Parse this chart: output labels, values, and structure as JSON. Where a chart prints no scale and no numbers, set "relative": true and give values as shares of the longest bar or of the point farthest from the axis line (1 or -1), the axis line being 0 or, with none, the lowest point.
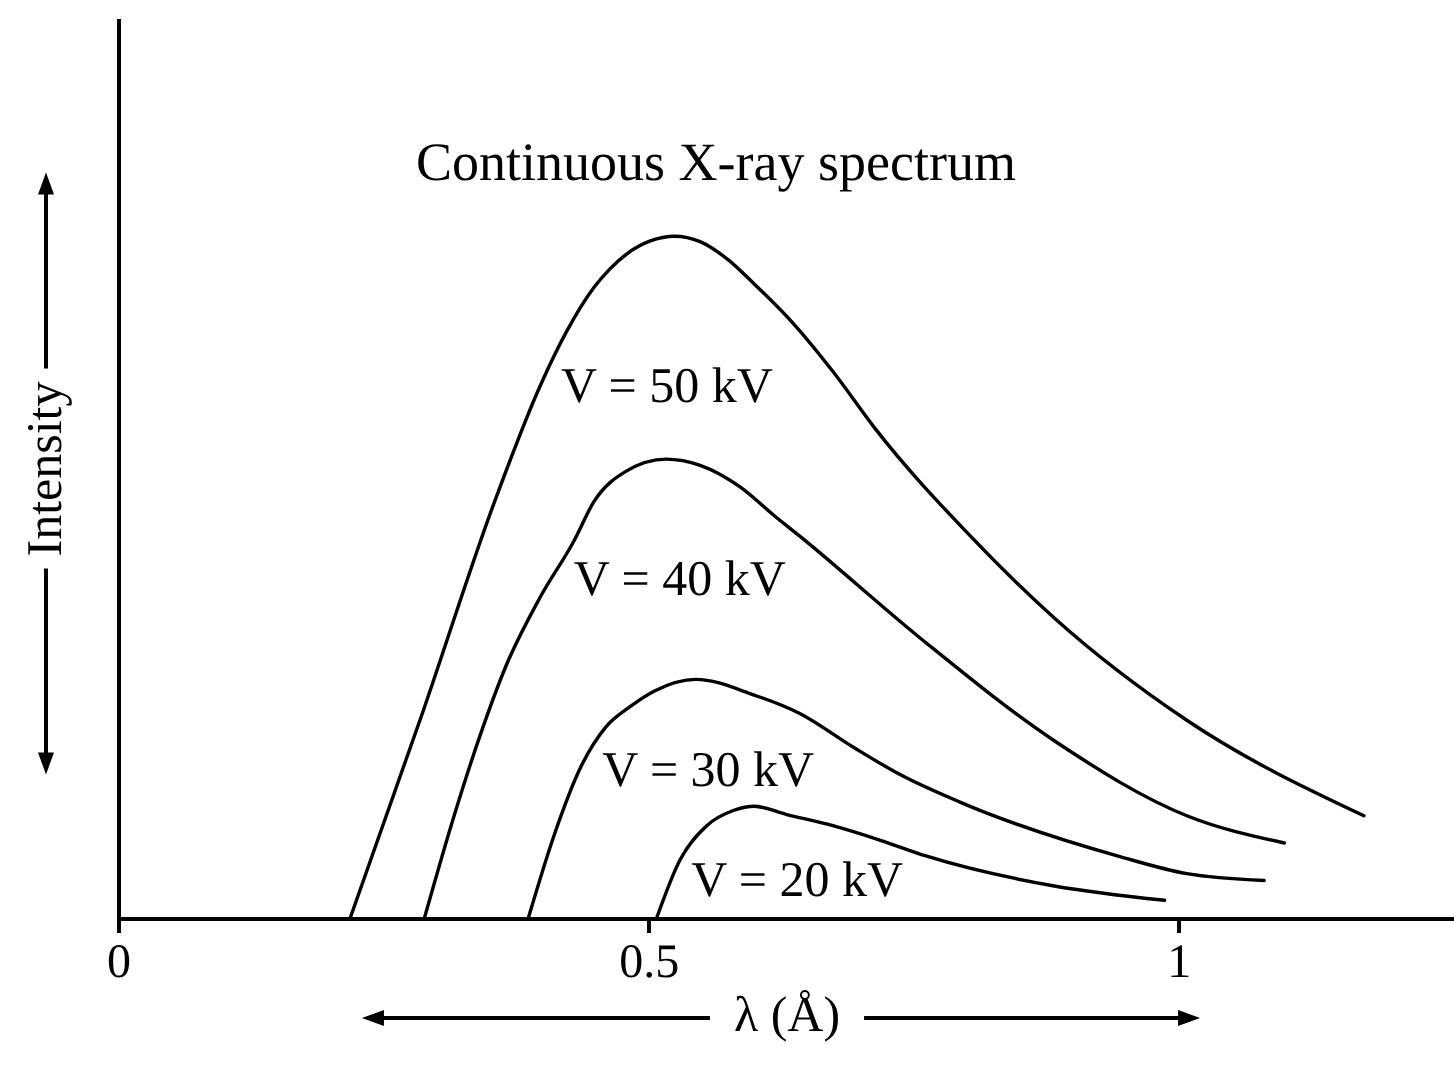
{
  "chart_data": {
    "type": "line",
    "title": "Continuous X-ray spectrum",
    "xlabel": "λ (Å)",
    "ylabel": "Intensity",
    "relative": true,
    "xlim": [
      0,
      1.26
    ],
    "xticks": [
      0,
      0.5,
      1
    ],
    "grid": false,
    "legend": false,
    "series": [
      {
        "name": "V = 50 kV",
        "color": "#000000",
        "x": [
          0.219,
          0.287,
          0.355,
          0.398,
          0.423,
          0.449,
          0.464,
          0.479,
          0.502,
          0.525,
          0.549,
          0.575,
          0.6,
          0.638,
          0.675,
          0.713,
          0.804,
          0.883,
          1.008,
          1.175
        ],
        "values": [
          0,
          0.3,
          0.61,
          0.78,
          0.86,
          0.925,
          0.952,
          0.973,
          0.993,
          1,
          0.992,
          0.966,
          0.93,
          0.87,
          0.8,
          0.72,
          0.56,
          0.44,
          0.29,
          0.15
        ]
      },
      {
        "name": "V = 40 kV",
        "color": "#000000",
        "x": [
          0.289,
          0.317,
          0.342,
          0.366,
          0.398,
          0.43,
          0.449,
          0.479,
          0.517,
          0.549,
          0.587,
          0.619,
          0.643,
          0.757,
          0.883,
          1.008,
          1.1
        ],
        "values": [
          0,
          0.15,
          0.27,
          0.37,
          0.47,
          0.553,
          0.611,
          0.655,
          0.673,
          0.664,
          0.632,
          0.59,
          0.56,
          0.41,
          0.26,
          0.15,
          0.11
        ]
      },
      {
        "name": "V = 30 kV",
        "color": "#000000",
        "x": [
          0.387,
          0.411,
          0.436,
          0.46,
          0.483,
          0.506,
          0.545,
          0.6,
          0.643,
          0.694,
          0.738,
          0.794,
          0.945,
          1.008,
          1.081
        ],
        "values": [
          0,
          0.12,
          0.22,
          0.28,
          0.31,
          0.333,
          0.35,
          0.327,
          0.3,
          0.25,
          0.21,
          0.17,
          0.09,
          0.065,
          0.055
        ]
      },
      {
        "name": "V = 20 kV",
        "color": "#000000",
        "x": [
          0.508,
          0.53,
          0.555,
          0.581,
          0.6,
          0.63,
          0.675,
          0.719,
          0.762,
          0.883,
          0.987
        ],
        "values": [
          0,
          0.085,
          0.135,
          0.158,
          0.164,
          0.152,
          0.135,
          0.114,
          0.091,
          0.047,
          0.026
        ]
      }
    ]
  }
}
